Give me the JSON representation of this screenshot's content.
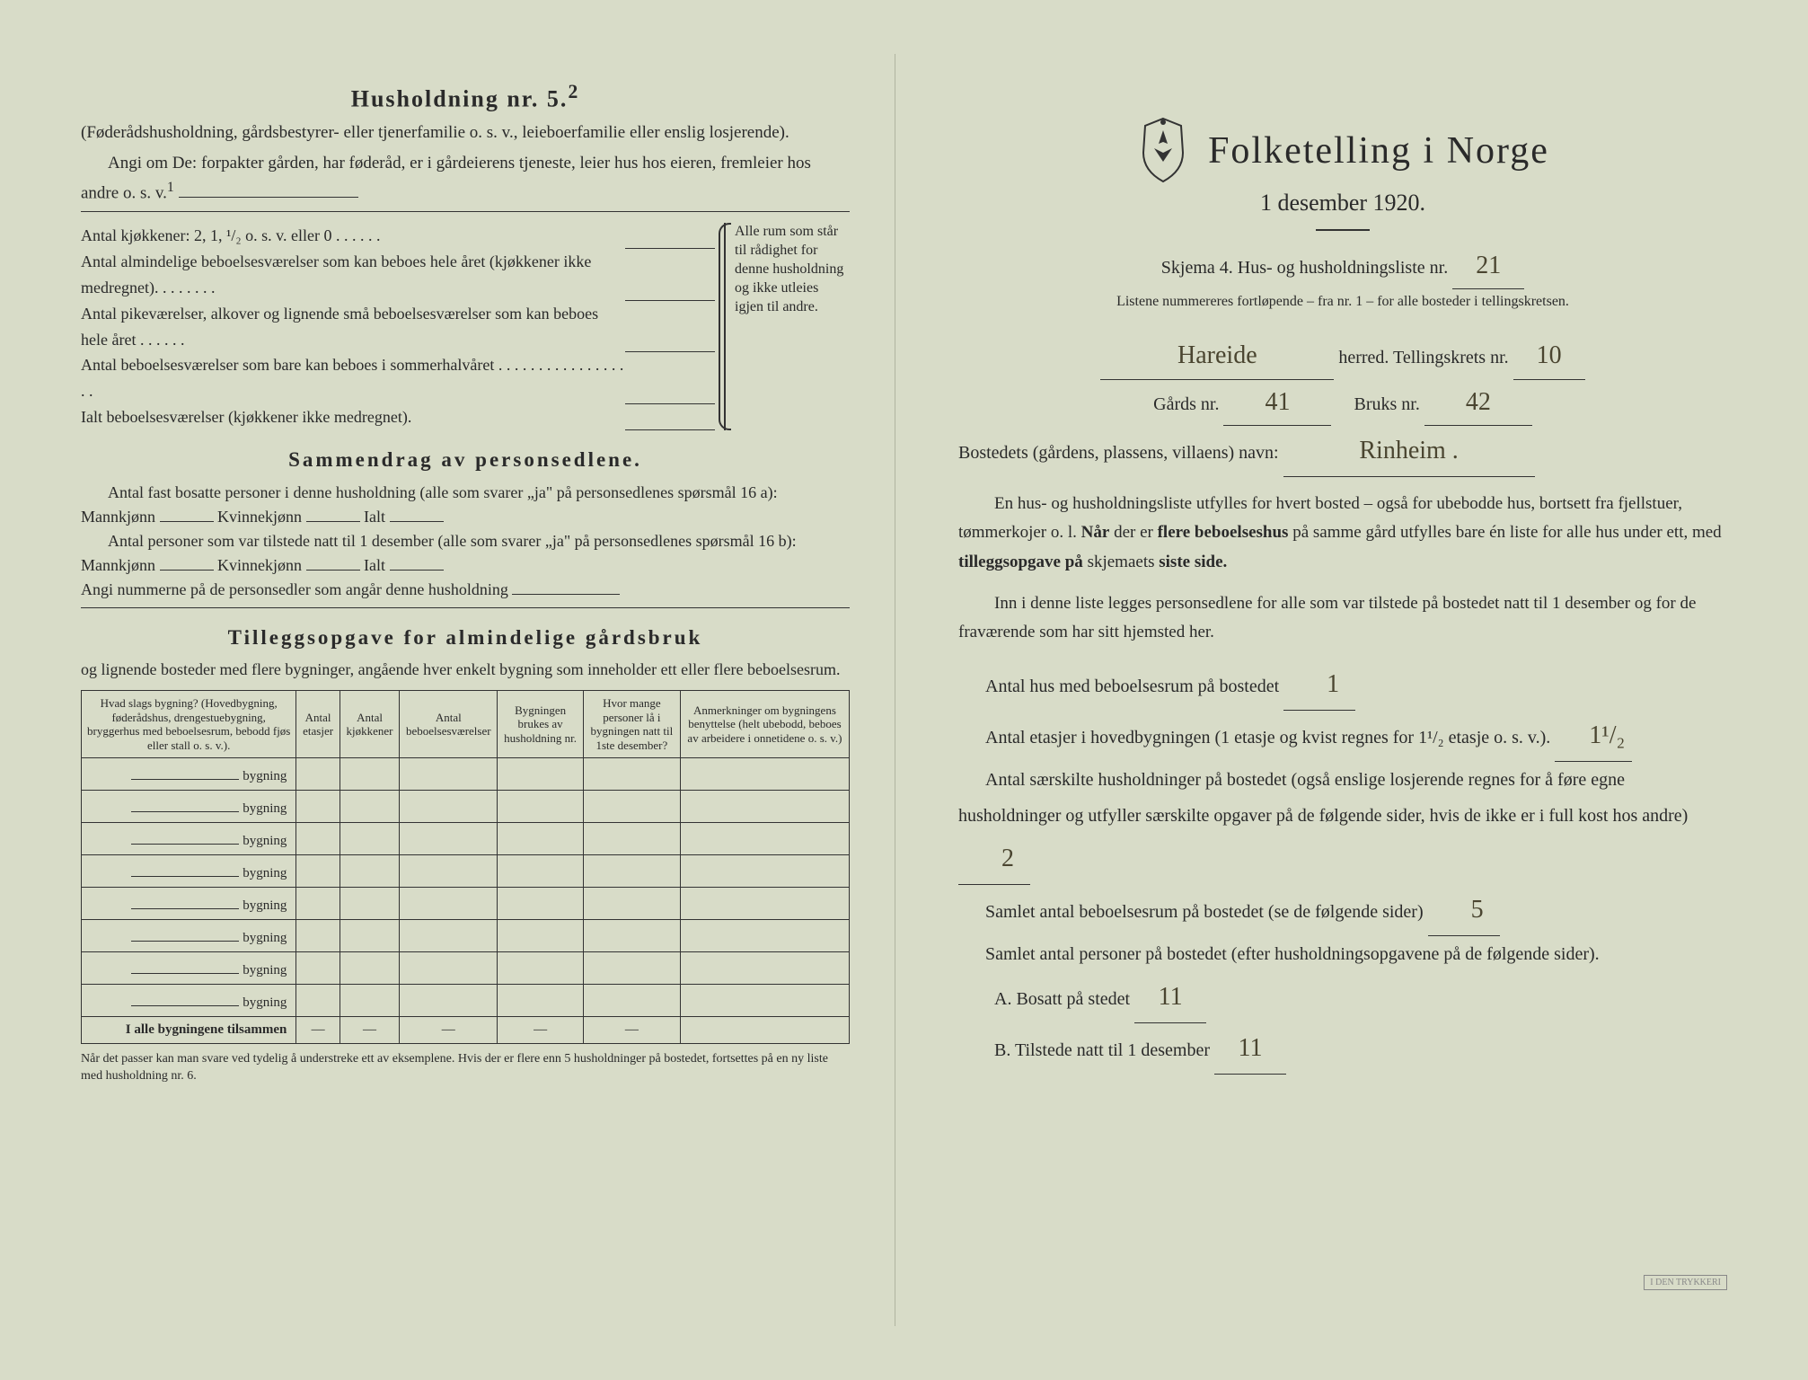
{
  "left": {
    "household_heading": "Husholdning nr. 5.",
    "household_sup": "2",
    "household_note": "(Føderådshusholdning, gårdsbestyrer- eller tjenerfamilie o. s. v., leieboerfamilie eller enslig losjerende).",
    "angi_line": "Angi om De:  forpakter gården, har føderåd, er i gårdeierens tjeneste, leier hus hos eieren, fremleier hos andre o. s. v.",
    "angi_sup": "1",
    "kitchen_rows": [
      "Antal kjøkkener: 2, 1, ¹/₂ o. s. v. eller 0 . . . . . .",
      "Antal almindelige beboelsesværelser som kan beboes hele året (kjøkkener ikke medregnet). . . . . . . .",
      "Antal pikeværelser, alkover og lignende små beboelsesværelser som kan beboes hele året . . . . . .",
      "Antal beboelsesværelser som bare kan beboes i sommerhalvåret . . . . . . . . . . . . . . . . . .",
      "Ialt beboelsesværelser (kjøkkener ikke medregnet)."
    ],
    "kitchen_side": "Alle rum som står til rådighet for denne husholdning og ikke utleies igjen til andre.",
    "summary_title": "Sammendrag av personsedlene.",
    "summary_p1": "Antal fast bosatte personer i denne husholdning (alle som svarer „ja\" på personsedlenes spørsmål 16 a): Mannkjønn",
    "summary_p1b": "Kvinnekjønn",
    "summary_p1c": "Ialt",
    "summary_p2": "Antal personer som var tilstede natt til 1 desember (alle som svarer „ja\" på personsedlenes spørsmål 16 b): Mannkjønn",
    "summary_p3": "Angi nummerne på de personsedler som angår denne husholdning",
    "tillegg_title": "Tilleggsopgave for almindelige gårdsbruk",
    "tillegg_intro": "og lignende bosteder med flere bygninger, angående hver enkelt bygning som inneholder ett eller flere beboelsesrum.",
    "table": {
      "headers": [
        "Hvad slags bygning?\n(Hovedbygning, føderådshus, drengestuebygning, bryggerhus med beboelsesrum, bebodd fjøs eller stall o. s. v.).",
        "Antal etasjer",
        "Antal kjøkkener",
        "Antal beboelsesværelser",
        "Bygningen brukes av husholdning nr.",
        "Hvor mange personer lå i bygningen natt til 1ste desember?",
        "Anmerkninger om bygningens benyttelse (helt ubebodd, beboes av arbeidere i onnetidene o. s. v.)"
      ],
      "row_label": "bygning",
      "row_count": 8,
      "total_label": "I alle bygningene tilsammen"
    },
    "footnote": "Når det passer kan man svare ved tydelig å understreke ett av eksemplene.\nHvis der er flere enn 5 husholdninger på bostedet, fortsettes på en ny liste med husholdning nr. 6."
  },
  "right": {
    "main_title": "Folketelling i Norge",
    "subtitle": "1 desember 1920.",
    "skjema_line": "Skjema 4.   Hus- og husholdningsliste nr.",
    "skjema_nr": "21",
    "list_note": "Listene nummereres fortløpende – fra nr. 1 – for alle bosteder i tellingskretsen.",
    "herred_value": "Hareide",
    "herred_label": "herred.   Tellingskrets nr.",
    "krets_nr": "10",
    "gards_label": "Gårds nr.",
    "gards_nr": "41",
    "bruks_label": "Bruks nr.",
    "bruks_nr": "42",
    "bosted_label": "Bostedets (gårdens, plassens, villaens) navn:",
    "bosted_value": "Rinheim .",
    "body_p1": "En hus- og husholdningsliste utfylles for hvert bosted – også for ubebodde hus, bortsett fra fjellstuer, tømmerkojer o. l.  Når der er flere beboelseshus på samme gård utfylles bare én liste for alle hus under ett, med tilleggsopgave på skjemaets siste side.",
    "body_p2": "Inn i denne liste legges personsedlene for alle som var tilstede på bostedet natt til 1 desember og for de fraværende som har sitt hjemsted her.",
    "q1_label": "Antal hus med beboelsesrum på bostedet",
    "q1_value": "1",
    "q2_label_a": "Antal etasjer i hovedbygningen (1 etasje og kvist regnes for 1¹/₂ etasje o. s. v.).",
    "q2_value": "1¹/₂",
    "q3_label": "Antal særskilte husholdninger på bostedet (også enslige losjerende regnes for å føre egne husholdninger og utfyller særskilte opgaver på de følgende sider, hvis de ikke er i full kost hos andre)",
    "q3_value": "2",
    "q4_label": "Samlet antal beboelsesrum på bostedet (se de følgende sider)",
    "q4_value": "5",
    "q5_label": "Samlet antal personer på bostedet (efter husholdningsopgavene på de følgende sider).",
    "qA_label": "A.  Bosatt på stedet",
    "qA_value": "11",
    "qB_label": "B.  Tilstede natt til 1 desember",
    "qB_value": "11",
    "stamp": "I DEN TRYKKERI"
  },
  "colors": {
    "paper": "#d8dcc8",
    "ink": "#2a2a2a",
    "handwriting": "#4a4530"
  }
}
